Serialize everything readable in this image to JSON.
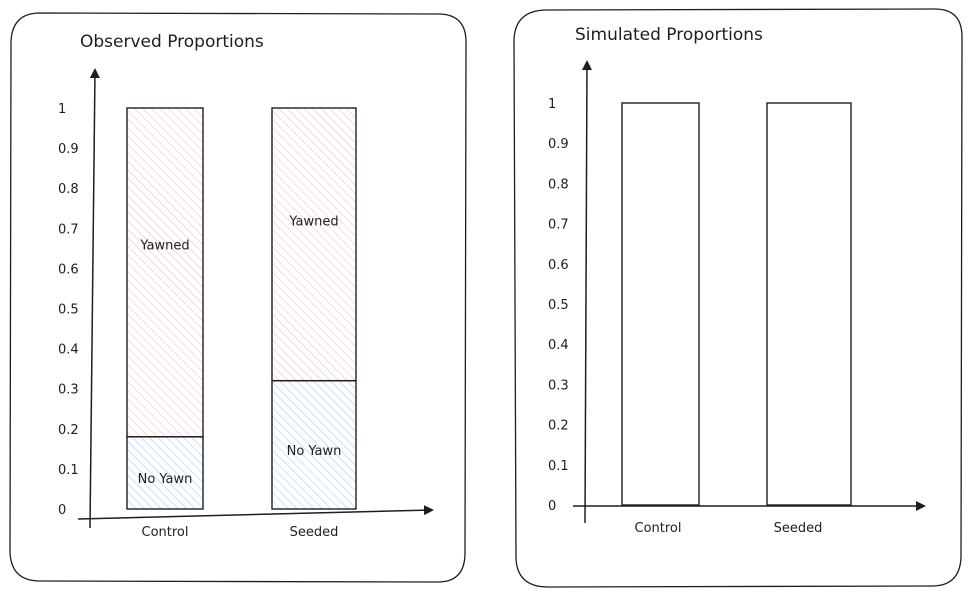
{
  "chart_data": [
    {
      "type": "bar",
      "stacked": true,
      "title": "Observed Proportions",
      "categories": [
        "Control",
        "Seeded"
      ],
      "ylim": [
        0,
        1
      ],
      "yticks": [
        "0",
        "0.1",
        "0.2",
        "0.3",
        "0.4",
        "0.5",
        "0.6",
        "0.7",
        "0.8",
        "0.9",
        "1"
      ],
      "series": [
        {
          "name": "No Yawn",
          "values": [
            0.18,
            0.32
          ],
          "color": "#a5d8ff"
        },
        {
          "name": "Yawned",
          "values": [
            0.82,
            0.68
          ],
          "color": "#ffc9c9"
        }
      ]
    },
    {
      "type": "bar",
      "title": "Simulated Proportions",
      "categories": [
        "Control",
        "Seeded"
      ],
      "ylim": [
        0,
        1
      ],
      "yticks": [
        "0",
        "0.1",
        "0.2",
        "0.3",
        "0.4",
        "0.5",
        "0.6",
        "0.7",
        "0.8",
        "0.9",
        "1"
      ],
      "values": [
        1,
        1
      ]
    }
  ]
}
